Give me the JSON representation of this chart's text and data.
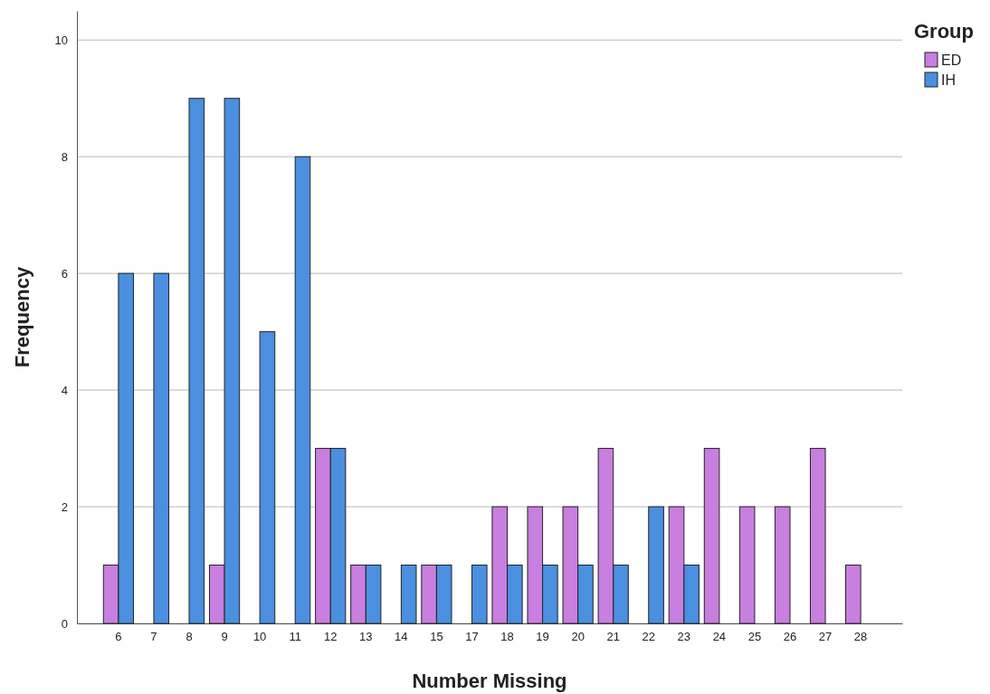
{
  "chart_data": {
    "type": "bar",
    "xlabel": "Number Missing",
    "ylabel": "Frequency",
    "legend_title": "Group",
    "legend": "top right",
    "grid": "y",
    "categories": [
      "6",
      "7",
      "8",
      "9",
      "10",
      "11",
      "12",
      "13",
      "14",
      "15",
      "17",
      "18",
      "19",
      "20",
      "21",
      "22",
      "23",
      "24",
      "25",
      "26",
      "27",
      "28"
    ],
    "ylim": [
      0,
      10.5
    ],
    "yticks": [
      0,
      2,
      4,
      6,
      8,
      10
    ],
    "series": [
      {
        "name": "ED",
        "color": "#c87fe0",
        "values": [
          1,
          null,
          null,
          1,
          null,
          null,
          3,
          1,
          null,
          1,
          null,
          2,
          2,
          2,
          3,
          null,
          2,
          3,
          2,
          2,
          3,
          1
        ]
      },
      {
        "name": "IH",
        "color": "#4a8fe0",
        "values": [
          6,
          6,
          9,
          9,
          5,
          8,
          3,
          1,
          1,
          1,
          1,
          1,
          1,
          1,
          1,
          2,
          1,
          null,
          null,
          null,
          null,
          null
        ]
      }
    ]
  }
}
